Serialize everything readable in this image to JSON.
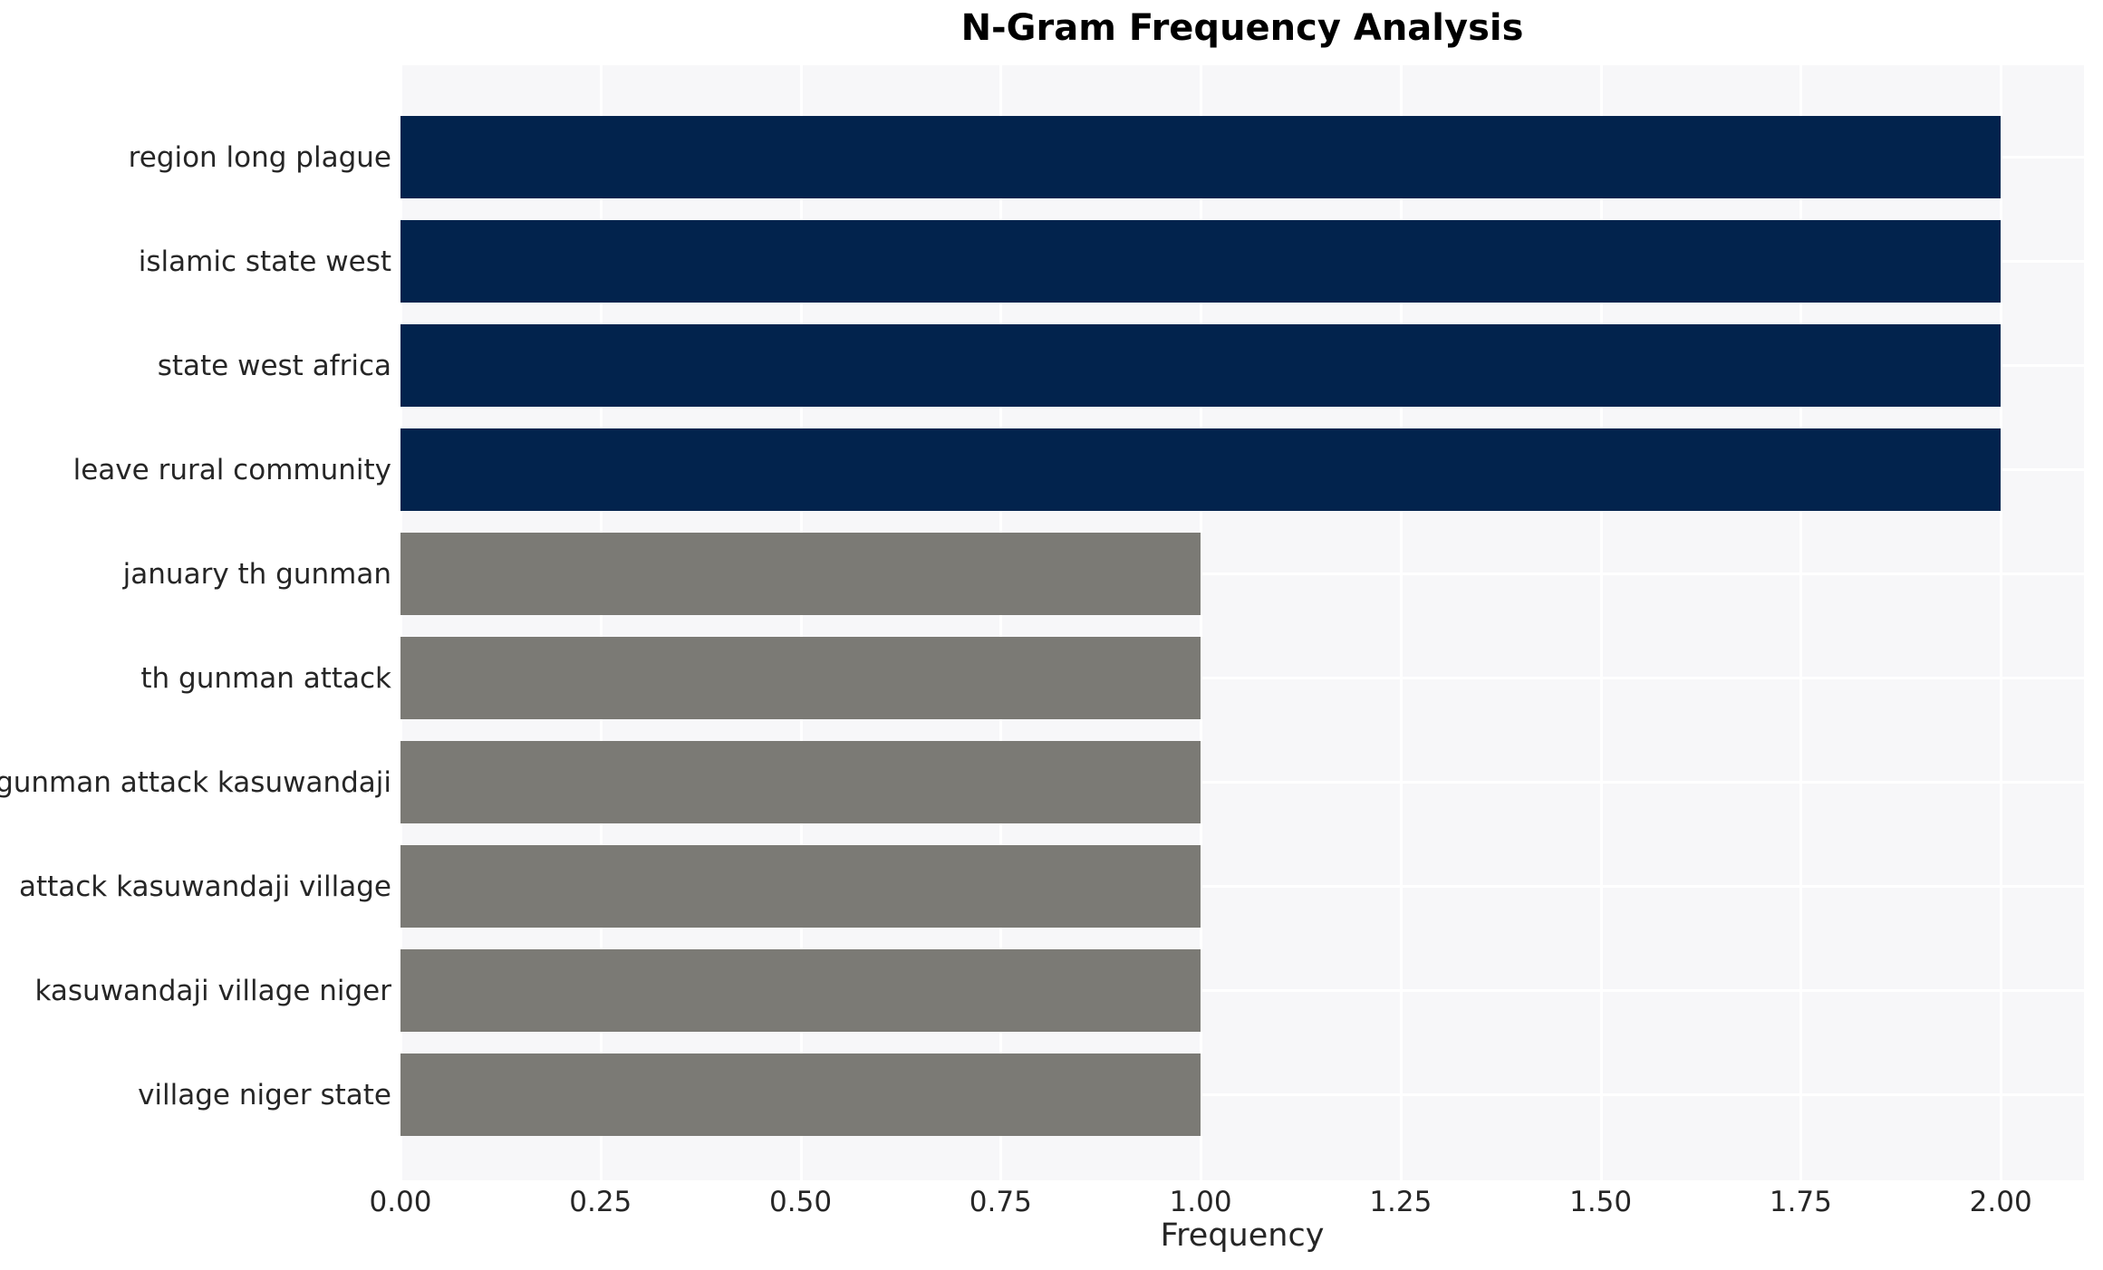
{
  "title": "N-Gram Frequency Analysis",
  "chart_data": {
    "type": "bar",
    "orientation": "horizontal",
    "title": "N-Gram Frequency Analysis",
    "xlabel": "Frequency",
    "ylabel": "",
    "categories": [
      "region long plague",
      "islamic state west",
      "state west africa",
      "leave rural community",
      "january th gunman",
      "th gunman attack",
      "gunman attack kasuwandaji",
      "attack kasuwandaji village",
      "kasuwandaji village niger",
      "village niger state"
    ],
    "values": [
      2,
      2,
      2,
      2,
      1,
      1,
      1,
      1,
      1,
      1
    ],
    "bar_colors": [
      "#02234d",
      "#02234d",
      "#02234d",
      "#02234d",
      "#7b7a75",
      "#7b7a75",
      "#7b7a75",
      "#7b7a75",
      "#7b7a75",
      "#7b7a75"
    ],
    "xlim": [
      0,
      2.104
    ],
    "xtick_values": [
      0,
      0.25,
      0.5,
      0.75,
      1.0,
      1.25,
      1.5,
      1.75,
      2.0
    ],
    "xtick_labels": [
      "0.00",
      "0.25",
      "0.50",
      "0.75",
      "1.00",
      "1.25",
      "1.50",
      "1.75",
      "2.00"
    ],
    "grid": true,
    "legend": false
  },
  "colors": {
    "bar_frequent": "#02234d",
    "bar_infrequent": "#7b7a75",
    "plot_background": "#f7f7f9",
    "gridline": "#ffffff",
    "tick_text": "#262626",
    "title_text": "#000000"
  }
}
